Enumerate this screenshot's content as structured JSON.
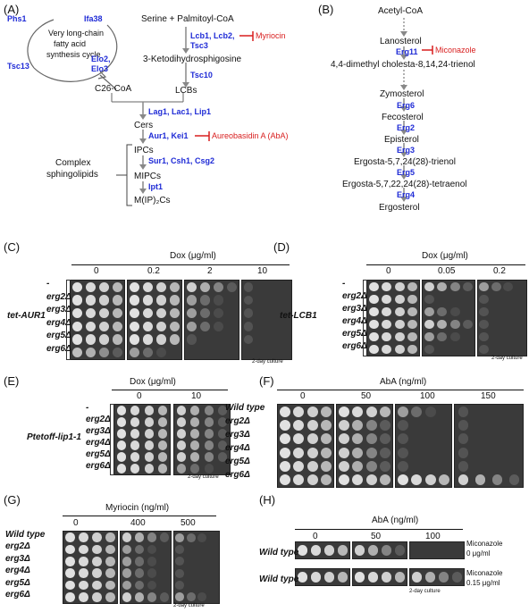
{
  "panel_labels": {
    "a": "(A)",
    "b": "(B)",
    "c": "(C)",
    "d": "(D)",
    "e": "(E)",
    "f": "(F)",
    "g": "(G)",
    "h": "(H)"
  },
  "panel_a": {
    "phs1": "Phs1",
    "ifa38": "Ifa38",
    "tsc13": "Tsc13",
    "elo23": "Elo2,",
    "elo3": "Elo3",
    "cycle1": "Very long-chain",
    "cycle2": "fatty acid",
    "cycle3": "synthesis cycle",
    "c26": "C26-CoA",
    "serine": "Serine + Palmitoyl-CoA",
    "lcb": "Lcb1, Lcb2,",
    "tsc3": "Tsc3",
    "myriocin": "Myriocin",
    "keto": "3-Ketodihydrosphigosine",
    "tsc10": "Tsc10",
    "lcbs": "LCBs",
    "lag": "Lag1, Lac1, Lip1",
    "cers": "Cers",
    "aur": "Aur1, Kei1",
    "aba": "Aureobasidin A (AbA)",
    "ipcs": "IPCs",
    "sur": "Sur1, Csh1, Csg2",
    "mipcs": "MIPCs",
    "ipt1": "Ipt1",
    "mip2c": "M(IP)₂Cs",
    "complex1": "Complex",
    "complex2": "sphingolipids"
  },
  "panel_b": {
    "acetyl": "Acetyl-CoA",
    "lano": "Lanosterol",
    "erg11": "Erg11",
    "mic": "Miconazole",
    "dimethyl": "4,4-dimethyl cholesta-8,14,24-trienol",
    "zymo": "Zymosterol",
    "erg6": "Erg6",
    "feco": "Fecosterol",
    "erg2": "Erg2",
    "epi": "Episterol",
    "erg3": "Erg3",
    "trienol": "Ergosta-5,7,24(28)-trienol",
    "erg5": "Erg5",
    "tetra": "Ergosta-5,7,22,24(28)-tetraenol",
    "erg4": "Ergo4",
    "ergo": "Ergosterol"
  },
  "strains6": [
    "-",
    "erg2Δ",
    "erg3Δ",
    "erg4Δ",
    "erg5Δ",
    "erg6Δ"
  ],
  "strains_wt": [
    "Wild type",
    "erg2Δ",
    "erg3Δ",
    "erg4Δ",
    "erg5Δ",
    "erg6Δ"
  ],
  "panel_c": {
    "title": "Dox (μg/ml)",
    "doses": [
      "0",
      "0.2",
      "2",
      "10"
    ],
    "construct": "tet-AUR1",
    "note": "2-day culture"
  },
  "panel_d": {
    "title": "Dox (μg/ml)",
    "doses": [
      "0",
      "0.05",
      "0.2"
    ],
    "construct": "tet-LCB1",
    "note": "2-day culture"
  },
  "panel_e": {
    "title": "Dox (μg/ml)",
    "doses": [
      "0",
      "10"
    ],
    "construct": "Ptetoff-lip1-1",
    "note": "2-day culture"
  },
  "panel_f": {
    "title": "AbA (ng/ml)",
    "doses": [
      "0",
      "50",
      "100",
      "150"
    ]
  },
  "panel_g": {
    "title": "Myriocin (ng/ml)",
    "doses": [
      "0",
      "400",
      "500"
    ],
    "note": "2-day culture"
  },
  "panel_h": {
    "title": "AbA (ng/ml)",
    "doses": [
      "0",
      "50",
      "100"
    ],
    "row1": "Wild type",
    "row2": "Wild type",
    "mic1a": "Miconazole",
    "mic1b": "0 μg/ml",
    "mic2a": "Miconazole",
    "mic2b": "0.15 μg/ml",
    "note": "2-day culture"
  },
  "colors": {
    "blue": "#1f2bd6",
    "red": "#d81e1e",
    "plate": "#3a3a3a",
    "colony": "#d8d8d8"
  }
}
